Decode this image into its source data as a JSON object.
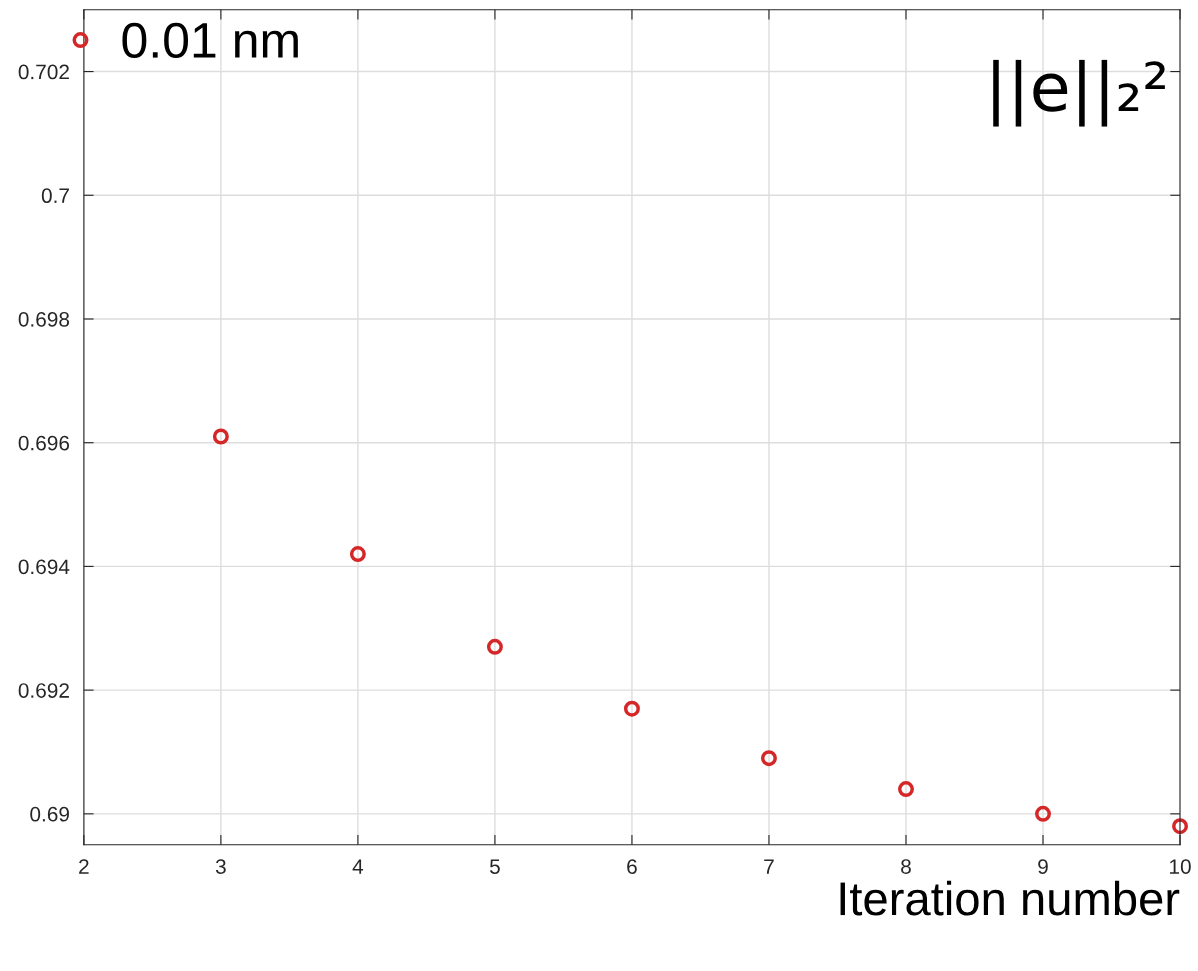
{
  "chart_data": {
    "type": "scatter",
    "xlabel": "Iteration number",
    "x": [
      3,
      4,
      5,
      6,
      7,
      8,
      9,
      10
    ],
    "series": [
      {
        "name": "0.01 nm",
        "color": "#d62728",
        "values": [
          0.6961,
          0.6942,
          0.6927,
          0.6917,
          0.6909,
          0.6904,
          0.69,
          0.6898
        ]
      }
    ],
    "xlim": [
      2,
      10
    ],
    "xticks": [
      2,
      3,
      4,
      5,
      6,
      7,
      8,
      9,
      10
    ],
    "ylim": [
      0.6895,
      0.703
    ],
    "yticks": [
      {
        "value": 0.69,
        "label": "0.69"
      },
      {
        "value": 0.692,
        "label": "0.692"
      },
      {
        "value": 0.694,
        "label": "0.694"
      },
      {
        "value": 0.696,
        "label": "0.696"
      },
      {
        "value": 0.698,
        "label": "0.698"
      },
      {
        "value": 0.7,
        "label": "0.7"
      },
      {
        "value": 0.702,
        "label": "0.702"
      }
    ],
    "annotations": [
      "||e||₂²"
    ],
    "grid": true,
    "legend": "top left",
    "marker": "circle"
  }
}
